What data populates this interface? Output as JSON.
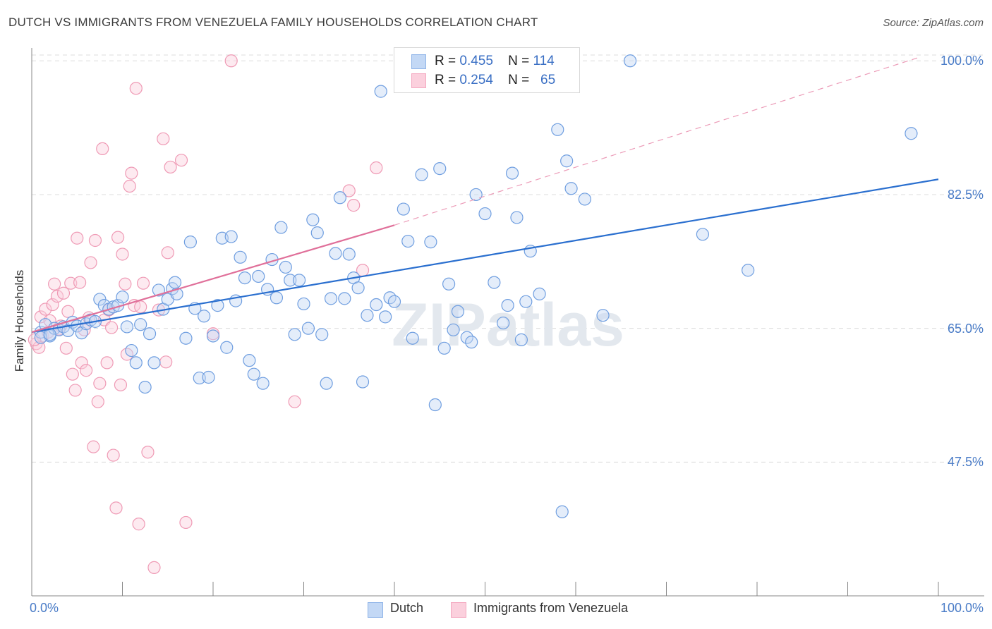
{
  "chart_data": {
    "type": "scatter",
    "title": "DUTCH VS IMMIGRANTS FROM VENEZUELA FAMILY HOUSEHOLDS CORRELATION CHART",
    "source": "Source: ZipAtlas.com",
    "ylabel": "Family Households",
    "xlabel": "",
    "xlim": [
      0,
      100
    ],
    "ylim": [
      30,
      101.5
    ],
    "x_tick_labels": [
      "0.0%",
      "100.0%"
    ],
    "y_ticks": [
      47.5,
      65.0,
      82.5,
      100.0
    ],
    "y_tick_labels": [
      "47.5%",
      "65.0%",
      "82.5%",
      "100.0%"
    ],
    "watermark": "ZIPatlas",
    "legend": {
      "rows": [
        {
          "r_label": "R =",
          "r_value": "0.455",
          "n_label": "N =",
          "n_value": "114"
        },
        {
          "r_label": "R =",
          "r_value": "0.254",
          "n_label": "N =",
          "n_value": "65"
        }
      ]
    },
    "series": [
      {
        "name": "Dutch",
        "color": "#8fb4e8",
        "line_color": "#2a6fcf",
        "r": 0.455,
        "n": 114,
        "trend": {
          "x0": 0,
          "y0": 64.5,
          "x1": 100,
          "y1": 84.5
        },
        "points": [
          [
            1,
            64.5
          ],
          [
            1.5,
            65.5
          ],
          [
            2,
            64
          ],
          [
            2.5,
            65
          ],
          [
            3,
            64.8
          ],
          [
            3.5,
            65.2
          ],
          [
            4,
            64.7
          ],
          [
            4.5,
            65.8
          ],
          [
            5,
            65.3
          ],
          [
            5.5,
            64.4
          ],
          [
            6,
            65.6
          ],
          [
            6.5,
            66.1
          ],
          [
            7,
            65.9
          ],
          [
            7.5,
            68.8
          ],
          [
            8,
            68
          ],
          [
            8.5,
            67.5
          ],
          [
            9,
            67.8
          ],
          [
            9.5,
            68
          ],
          [
            10,
            69.1
          ],
          [
            10.5,
            65.2
          ],
          [
            11,
            62.1
          ],
          [
            11.5,
            60.5
          ],
          [
            12,
            65.5
          ],
          [
            12.5,
            57.3
          ],
          [
            13,
            64.3
          ],
          [
            13.5,
            60.5
          ],
          [
            14,
            70
          ],
          [
            14.5,
            67.5
          ],
          [
            15,
            68.8
          ],
          [
            15.5,
            70.2
          ],
          [
            15.8,
            71
          ],
          [
            16,
            69.5
          ],
          [
            17,
            63.7
          ],
          [
            17.5,
            76.3
          ],
          [
            18,
            67.6
          ],
          [
            18.5,
            58.5
          ],
          [
            19,
            66.6
          ],
          [
            19.5,
            58.6
          ],
          [
            20,
            64
          ],
          [
            20.5,
            68
          ],
          [
            21,
            76.8
          ],
          [
            21.5,
            62.5
          ],
          [
            22,
            77
          ],
          [
            22.5,
            68.6
          ],
          [
            23,
            74.3
          ],
          [
            23.5,
            71.6
          ],
          [
            24,
            60.8
          ],
          [
            24.5,
            59
          ],
          [
            25,
            71.8
          ],
          [
            25.5,
            57.8
          ],
          [
            26,
            70.1
          ],
          [
            26.5,
            74
          ],
          [
            27,
            69
          ],
          [
            27.5,
            78.2
          ],
          [
            28,
            73
          ],
          [
            28.5,
            71.3
          ],
          [
            29,
            64.2
          ],
          [
            29.5,
            71.3
          ],
          [
            30,
            68.2
          ],
          [
            30.5,
            65
          ],
          [
            31,
            79.2
          ],
          [
            31.5,
            77.5
          ],
          [
            32,
            64.2
          ],
          [
            32.5,
            57.8
          ],
          [
            33,
            68.9
          ],
          [
            33.5,
            74.8
          ],
          [
            34,
            82.1
          ],
          [
            34.5,
            68.9
          ],
          [
            35,
            74.7
          ],
          [
            35.5,
            71.6
          ],
          [
            36,
            70.3
          ],
          [
            36.5,
            58
          ],
          [
            37,
            66.7
          ],
          [
            38,
            68.1
          ],
          [
            38.5,
            96
          ],
          [
            39,
            66.5
          ],
          [
            39.5,
            69
          ],
          [
            40,
            68.5
          ],
          [
            41,
            80.6
          ],
          [
            41.5,
            76.4
          ],
          [
            42,
            63.7
          ],
          [
            43,
            85.1
          ],
          [
            44,
            76.3
          ],
          [
            44.5,
            55
          ],
          [
            45,
            85.9
          ],
          [
            45.5,
            62.4
          ],
          [
            46,
            70.8
          ],
          [
            46.5,
            64.8
          ],
          [
            47,
            67.2
          ],
          [
            48,
            63.8
          ],
          [
            48.5,
            63.2
          ],
          [
            49,
            82.5
          ],
          [
            50,
            80
          ],
          [
            51,
            71
          ],
          [
            52,
            65.7
          ],
          [
            52.5,
            68
          ],
          [
            53,
            85.3
          ],
          [
            53.5,
            79.5
          ],
          [
            54,
            63.5
          ],
          [
            54.5,
            68.5
          ],
          [
            55,
            75.1
          ],
          [
            56,
            69.5
          ],
          [
            58,
            91
          ],
          [
            58.5,
            41
          ],
          [
            59,
            86.9
          ],
          [
            59.5,
            83.3
          ],
          [
            61,
            81.9
          ],
          [
            63,
            66.7
          ],
          [
            66,
            100
          ],
          [
            74,
            77.3
          ],
          [
            79,
            72.6
          ],
          [
            97,
            90.5
          ],
          [
            1,
            63.8
          ],
          [
            2,
            64.2
          ]
        ]
      },
      {
        "name": "Immigrants from Venezuela",
        "color": "#f4a8c0",
        "line_color": "#e0709a",
        "r": 0.254,
        "n": 65,
        "trend": {
          "x0": 0,
          "y0": 64.5,
          "x1": 40,
          "y1": 78.5
        },
        "trend_dashed": {
          "x0": 40,
          "y0": 78.5,
          "x1": 98,
          "y1": 100.5
        },
        "points": [
          [
            0.5,
            63
          ],
          [
            0.8,
            62.5
          ],
          [
            1,
            66.5
          ],
          [
            1.2,
            64
          ],
          [
            1.5,
            67.5
          ],
          [
            1.8,
            64.5
          ],
          [
            2,
            66
          ],
          [
            2.3,
            68.1
          ],
          [
            2.5,
            70.8
          ],
          [
            2.8,
            69.2
          ],
          [
            3,
            64.9
          ],
          [
            3.2,
            65.3
          ],
          [
            3.5,
            69.6
          ],
          [
            3.8,
            62.4
          ],
          [
            4,
            67.2
          ],
          [
            4.3,
            70.9
          ],
          [
            4.5,
            59
          ],
          [
            4.8,
            56.9
          ],
          [
            5,
            76.8
          ],
          [
            5.3,
            71
          ],
          [
            5.5,
            60.5
          ],
          [
            5.8,
            64.8
          ],
          [
            6,
            59.5
          ],
          [
            6.3,
            66.4
          ],
          [
            6.5,
            73.6
          ],
          [
            6.8,
            49.5
          ],
          [
            7,
            76.5
          ],
          [
            7.3,
            55.4
          ],
          [
            7.5,
            57.8
          ],
          [
            7.8,
            88.5
          ],
          [
            8,
            66.1
          ],
          [
            8.3,
            60.5
          ],
          [
            8.5,
            67.4
          ],
          [
            8.8,
            65.1
          ],
          [
            9,
            48.4
          ],
          [
            9.3,
            41.5
          ],
          [
            9.5,
            76.9
          ],
          [
            9.8,
            57.6
          ],
          [
            10,
            74.7
          ],
          [
            10.3,
            70.8
          ],
          [
            10.5,
            61.6
          ],
          [
            10.8,
            83.6
          ],
          [
            11,
            85.3
          ],
          [
            11.3,
            68
          ],
          [
            11.5,
            96.4
          ],
          [
            11.8,
            39.4
          ],
          [
            12,
            67.8
          ],
          [
            12.3,
            70.9
          ],
          [
            12.8,
            48.8
          ],
          [
            13.5,
            33.7
          ],
          [
            14,
            67.4
          ],
          [
            14.5,
            89.8
          ],
          [
            14.8,
            60.6
          ],
          [
            15,
            74.9
          ],
          [
            15.3,
            86.1
          ],
          [
            16.5,
            87
          ],
          [
            17,
            39.6
          ],
          [
            20,
            64.3
          ],
          [
            22,
            100
          ],
          [
            29,
            55.4
          ],
          [
            35,
            83
          ],
          [
            35.5,
            81.1
          ],
          [
            36.5,
            72.6
          ],
          [
            38,
            86
          ],
          [
            0.3,
            63.5
          ]
        ]
      }
    ]
  }
}
